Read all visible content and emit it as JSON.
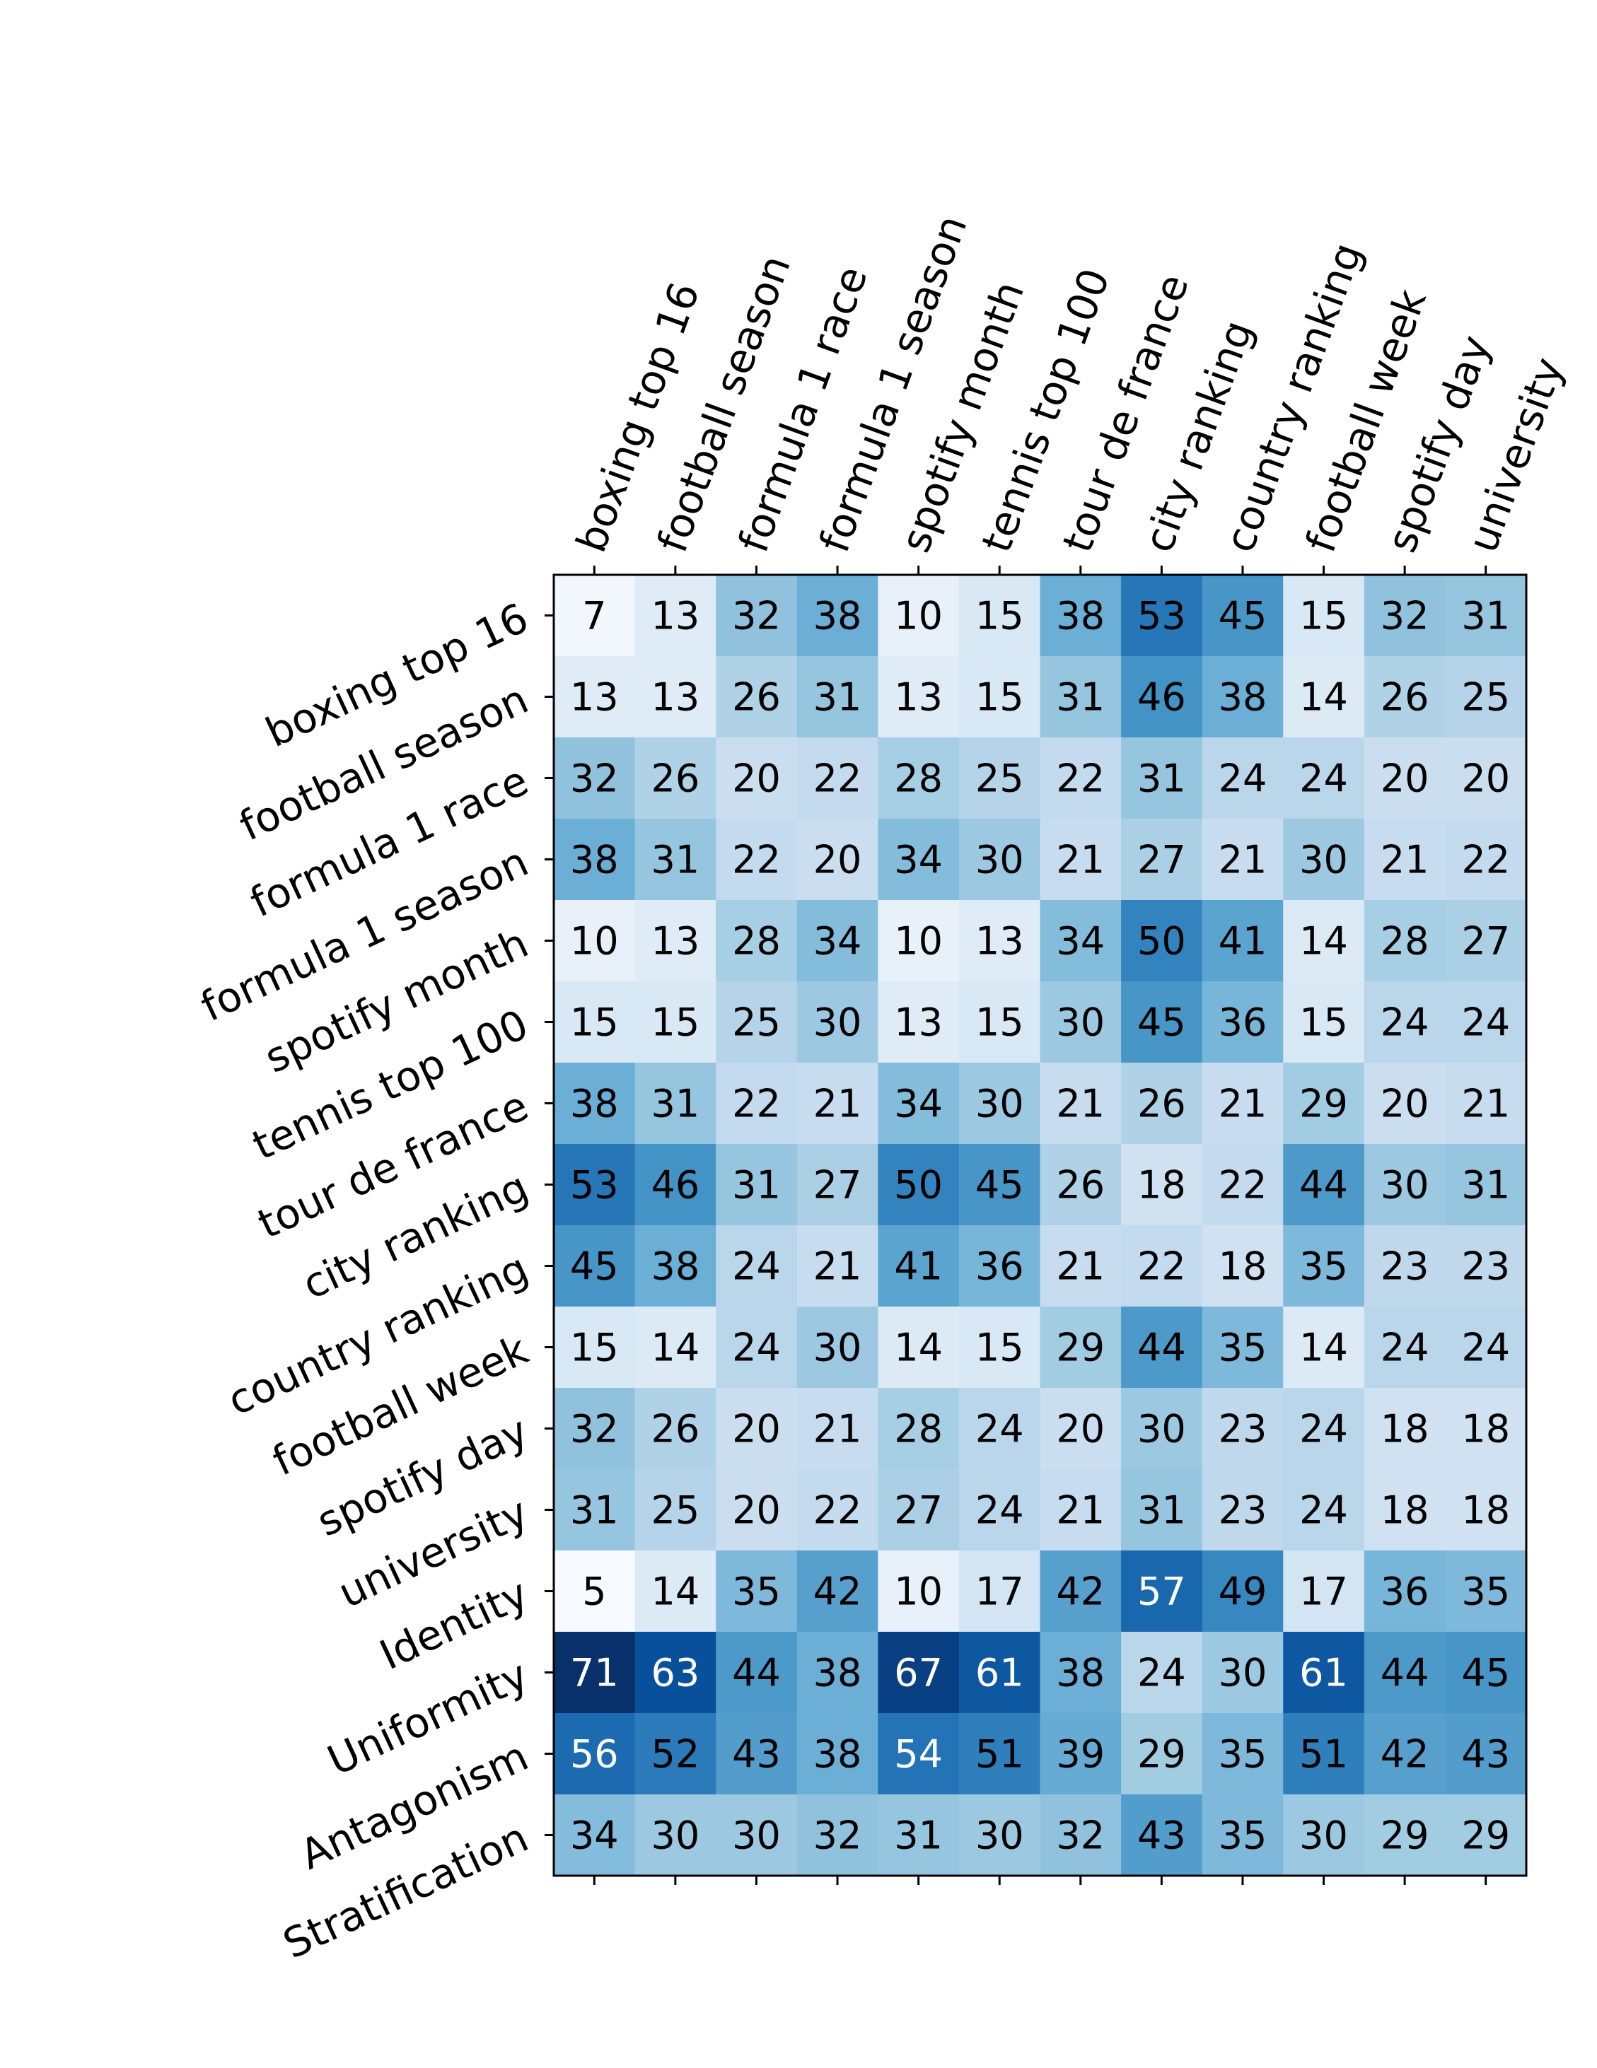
{
  "chart_data": {
    "type": "heatmap",
    "colormap": "Blues",
    "color_range": [
      5,
      71
    ],
    "x_categories": [
      "boxing top 16",
      "football season",
      "formula 1 race",
      "formula 1 season",
      "spotify month",
      "tennis top 100",
      "tour de france",
      "city ranking",
      "country ranking",
      "football week",
      "spotify day",
      "university"
    ],
    "y_categories": [
      "boxing top 16",
      "football season",
      "formula 1 race",
      "formula 1 season",
      "spotify month",
      "tennis top 100",
      "tour de france",
      "city ranking",
      "country ranking",
      "football week",
      "spotify day",
      "university",
      "Identity",
      "Uniformity",
      "Antagonism",
      "Stratification"
    ],
    "values": [
      [
        7,
        13,
        32,
        38,
        10,
        15,
        38,
        53,
        45,
        15,
        32,
        31
      ],
      [
        13,
        13,
        26,
        31,
        13,
        15,
        31,
        46,
        38,
        14,
        26,
        25
      ],
      [
        32,
        26,
        20,
        22,
        28,
        25,
        22,
        31,
        24,
        24,
        20,
        20
      ],
      [
        38,
        31,
        22,
        20,
        34,
        30,
        21,
        27,
        21,
        30,
        21,
        22
      ],
      [
        10,
        13,
        28,
        34,
        10,
        13,
        34,
        50,
        41,
        14,
        28,
        27
      ],
      [
        15,
        15,
        25,
        30,
        13,
        15,
        30,
        45,
        36,
        15,
        24,
        24
      ],
      [
        38,
        31,
        22,
        21,
        34,
        30,
        21,
        26,
        21,
        29,
        20,
        21
      ],
      [
        53,
        46,
        31,
        27,
        50,
        45,
        26,
        18,
        22,
        44,
        30,
        31
      ],
      [
        45,
        38,
        24,
        21,
        41,
        36,
        21,
        22,
        18,
        35,
        23,
        23
      ],
      [
        15,
        14,
        24,
        30,
        14,
        15,
        29,
        44,
        35,
        14,
        24,
        24
      ],
      [
        32,
        26,
        20,
        21,
        28,
        24,
        20,
        30,
        23,
        24,
        18,
        18
      ],
      [
        31,
        25,
        20,
        22,
        27,
        24,
        21,
        31,
        23,
        24,
        18,
        18
      ],
      [
        5,
        14,
        35,
        42,
        10,
        17,
        42,
        57,
        49,
        17,
        36,
        35
      ],
      [
        71,
        63,
        44,
        38,
        67,
        61,
        38,
        24,
        30,
        61,
        44,
        45
      ],
      [
        56,
        52,
        43,
        38,
        54,
        51,
        39,
        29,
        35,
        51,
        42,
        43
      ],
      [
        34,
        30,
        30,
        32,
        31,
        30,
        32,
        43,
        35,
        30,
        29,
        29
      ]
    ],
    "title": "",
    "xlabel": "",
    "ylabel": "",
    "x_tick_position": "top",
    "grid": false,
    "legend": "none"
  }
}
